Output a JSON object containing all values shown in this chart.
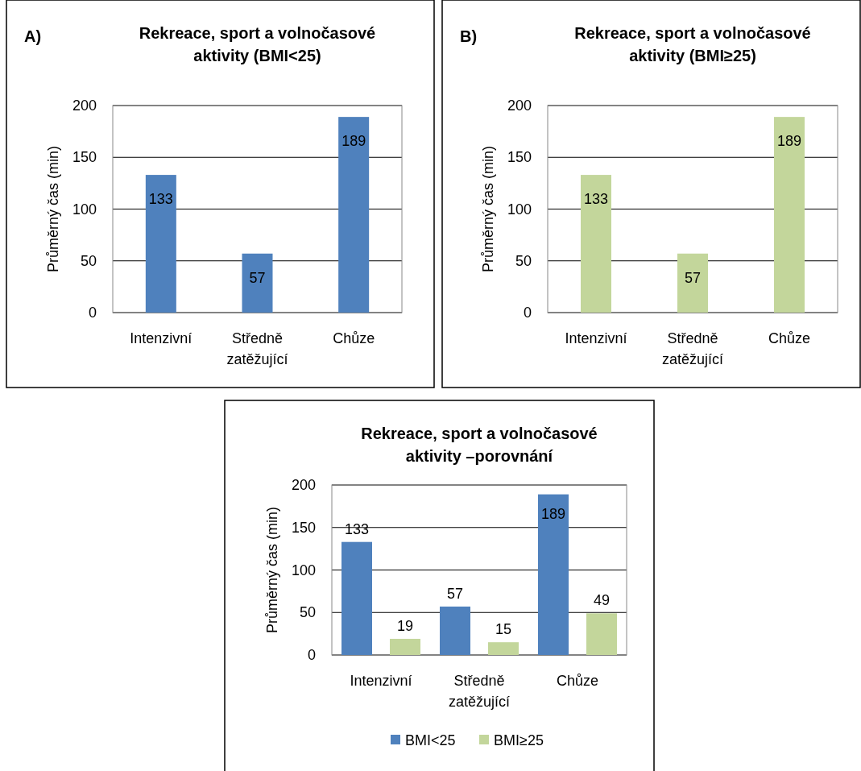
{
  "chart_data": [
    {
      "type": "bar",
      "title": "Rekreace, sport a volnočasové aktivity (BMI<25)",
      "annotations": [
        "A)"
      ],
      "ylabel": "Průměrný čas (min)",
      "categories": [
        "Intenzivní",
        "Středně zatěžující",
        "Chůze"
      ],
      "series": [
        {
          "color": "#4f81bd",
          "values": [
            133,
            57,
            189
          ]
        }
      ],
      "ylim": [
        0,
        200
      ],
      "yticks": [
        0,
        50,
        100,
        150,
        200
      ],
      "grid": "y",
      "data_labels": true,
      "legend": false
    },
    {
      "type": "bar",
      "title": "Rekreace, sport a volnočasové aktivity (BMI≥25)",
      "annotations": [
        "B)"
      ],
      "ylabel": "Průměrný čas (min)",
      "categories": [
        "Intenzivní",
        "Středně zatěžující",
        "Chůze"
      ],
      "series": [
        {
          "color": "#c3d69b",
          "values": [
            133,
            57,
            189
          ]
        }
      ],
      "ylim": [
        0,
        200
      ],
      "yticks": [
        0,
        50,
        100,
        150,
        200
      ],
      "grid": "y",
      "data_labels": true,
      "legend": false
    },
    {
      "type": "bar",
      "title": "Rekreace, sport a volnočasové aktivity –porovnání",
      "ylabel": "Průměrný čas (min)",
      "categories": [
        "Intenzivní",
        "Středně zatěžující",
        "Chůze"
      ],
      "series": [
        {
          "name": "BMI<25",
          "color": "#4f81bd",
          "values": [
            133,
            57,
            189
          ]
        },
        {
          "name": "BMI≥25",
          "color": "#c3d69b",
          "values": [
            19,
            15,
            49
          ]
        }
      ],
      "ylim": [
        0,
        200
      ],
      "yticks": [
        0,
        50,
        100,
        150,
        200
      ],
      "grid": "y",
      "data_labels": true,
      "legend": "bottom"
    }
  ]
}
